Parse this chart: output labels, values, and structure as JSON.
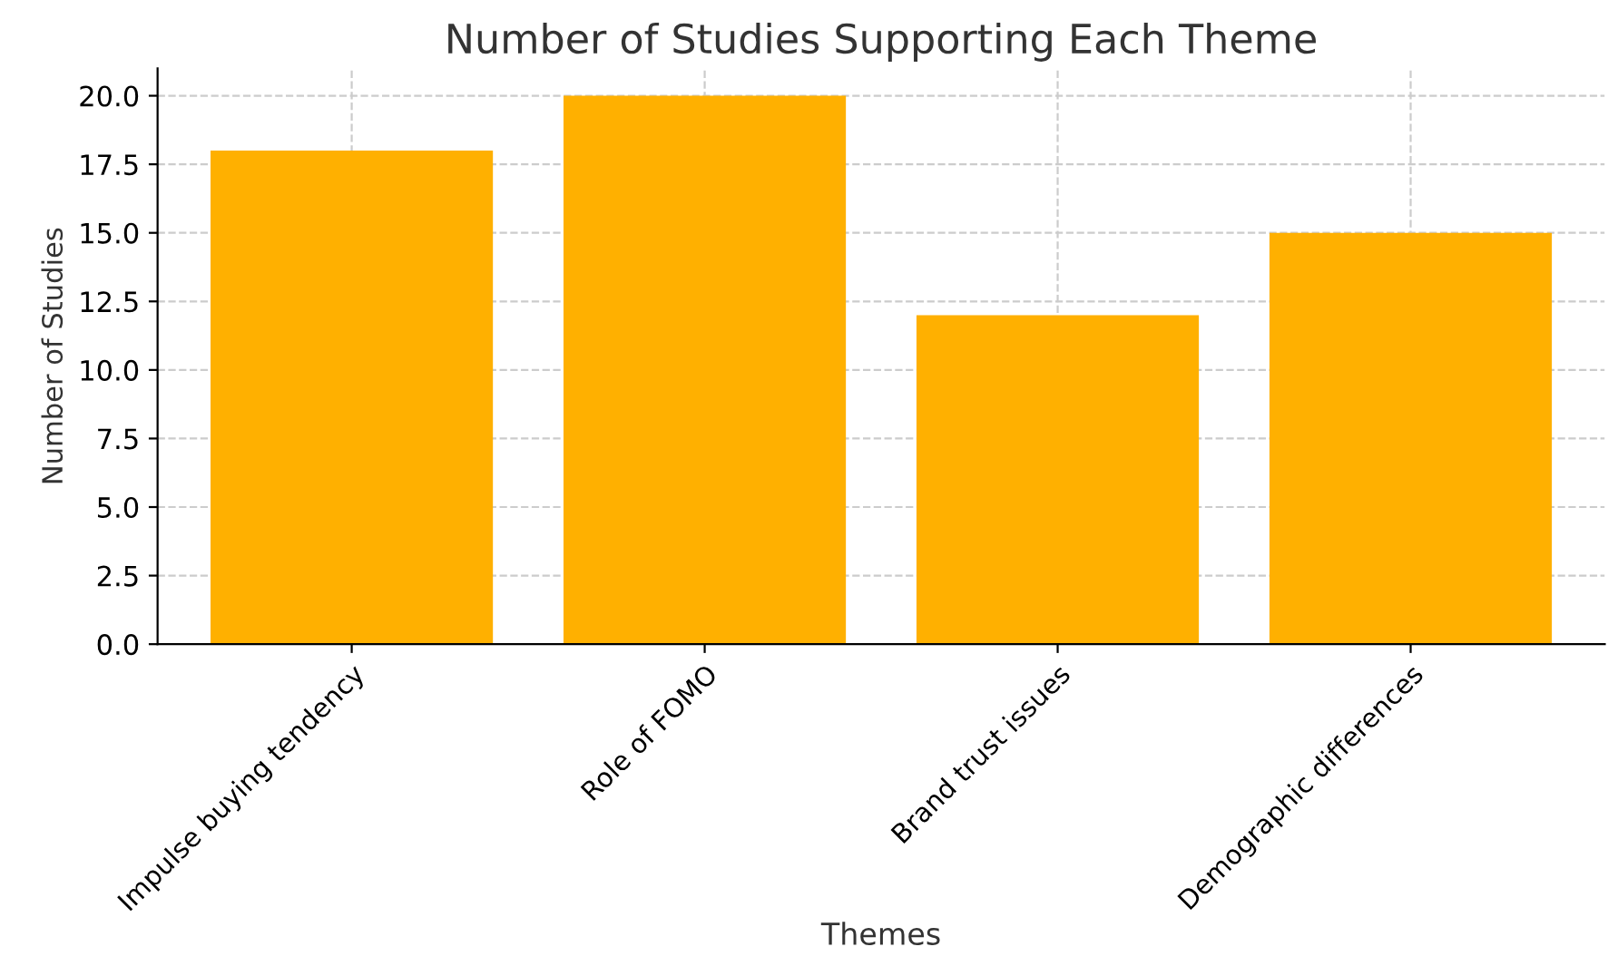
{
  "chart_data": {
    "type": "bar",
    "title": "Number of Studies Supporting Each Theme",
    "xlabel": "Themes",
    "ylabel": "Number of Studies",
    "categories": [
      "Impulse buying tendency",
      "Role of FOMO",
      "Brand trust issues",
      "Demographic differences"
    ],
    "values": [
      18,
      20,
      12,
      15
    ],
    "color": "#ffb000",
    "ylim": [
      0,
      21
    ],
    "yticks": [
      {
        "value": 0,
        "label": "0.0"
      },
      {
        "value": 2.5,
        "label": "2.5"
      },
      {
        "value": 5,
        "label": "5.0"
      },
      {
        "value": 7.5,
        "label": "7.5"
      },
      {
        "value": 10,
        "label": "10.0"
      },
      {
        "value": 12.5,
        "label": "12.5"
      },
      {
        "value": 15,
        "label": "15.0"
      },
      {
        "value": 17.5,
        "label": "17.5"
      },
      {
        "value": 20,
        "label": "20.0"
      }
    ],
    "grid": true
  }
}
